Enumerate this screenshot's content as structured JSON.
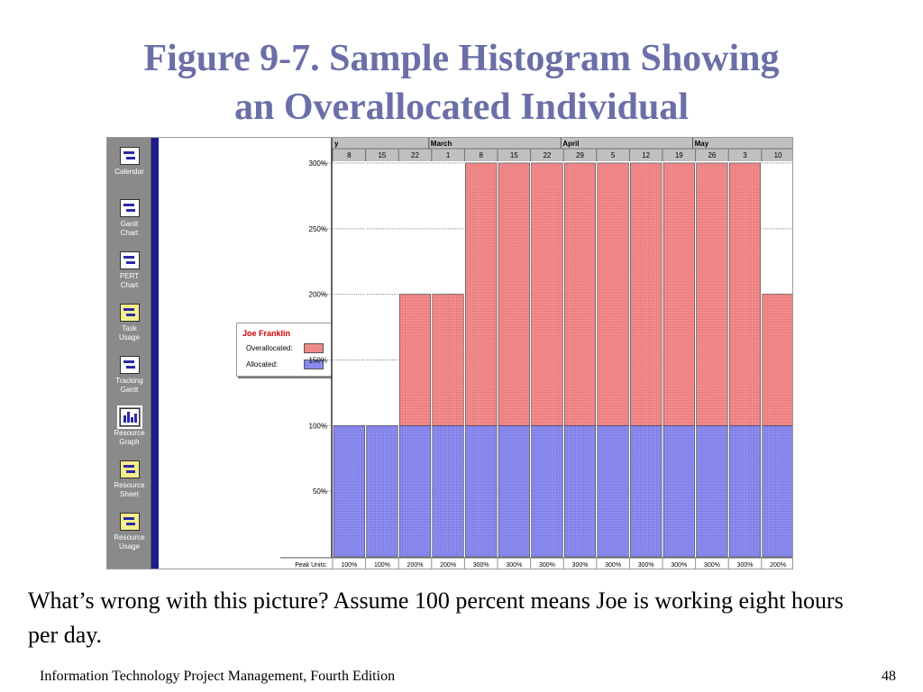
{
  "slide": {
    "title_line1": "Figure 9-7. Sample Histogram Showing",
    "title_line2": "an Overallocated Individual",
    "caption": "What’s wrong with this picture?  Assume 100 percent means Joe is working eight hours per day.",
    "footer_left": "Information Technology Project Management, Fourth Edition",
    "page_number": "48"
  },
  "view_bar": {
    "items": [
      {
        "label": "Calendar",
        "icon": "calendar-icon"
      },
      {
        "label": "Gantt\nChart",
        "icon": "gantt-chart-icon"
      },
      {
        "label": "PERT\nChart",
        "icon": "pert-chart-icon"
      },
      {
        "label": "Task\nUsage",
        "icon": "task-usage-icon"
      },
      {
        "label": "Tracking\nGantt",
        "icon": "tracking-gantt-icon"
      },
      {
        "label": "Resource\nGraph",
        "icon": "resource-graph-icon",
        "active": true
      },
      {
        "label": "Resource\nSheet",
        "icon": "resource-sheet-icon"
      },
      {
        "label": "Resource\nUsage",
        "icon": "resource-usage-icon"
      }
    ]
  },
  "legend": {
    "resource_name": "Joe Franklin",
    "overallocated_label": "Overallocated:",
    "allocated_label": "Allocated:"
  },
  "colors": {
    "overallocated": "#f08a8a",
    "allocated": "#8a8aee",
    "title": "#6b6fa8",
    "view_bar": "#8a8a8a",
    "splitter": "#1c1c8e"
  },
  "timescale": {
    "months": [
      "y",
      "March",
      "April",
      "May"
    ],
    "weeks": [
      "8",
      "15",
      "22",
      "1",
      "8",
      "15",
      "22",
      "29",
      "5",
      "12",
      "19",
      "26",
      "3",
      "10"
    ]
  },
  "chart_data": {
    "type": "bar",
    "title": "",
    "xlabel": "",
    "ylabel": "",
    "ylim": [
      0,
      300
    ],
    "y_ticks": [
      "50%",
      "100%",
      "150%",
      "200%",
      "250%",
      "300%"
    ],
    "categories": [
      "8",
      "15",
      "22",
      "1",
      "8",
      "15",
      "22",
      "29",
      "5",
      "12",
      "19",
      "26",
      "3",
      "10"
    ],
    "series": [
      {
        "name": "Allocated",
        "values": [
          100,
          100,
          100,
          100,
          100,
          100,
          100,
          100,
          100,
          100,
          100,
          100,
          100,
          100
        ]
      },
      {
        "name": "Overallocated",
        "values": [
          0,
          0,
          100,
          100,
          200,
          200,
          200,
          200,
          200,
          200,
          200,
          200,
          200,
          100
        ]
      }
    ],
    "peak_units_label": "Peak Units:",
    "peak_units": [
      "100%",
      "100%",
      "200%",
      "200%",
      "300%",
      "300%",
      "300%",
      "300%",
      "300%",
      "300%",
      "300%",
      "300%",
      "300%",
      "200%"
    ],
    "grid": true,
    "legend_position": "left"
  }
}
